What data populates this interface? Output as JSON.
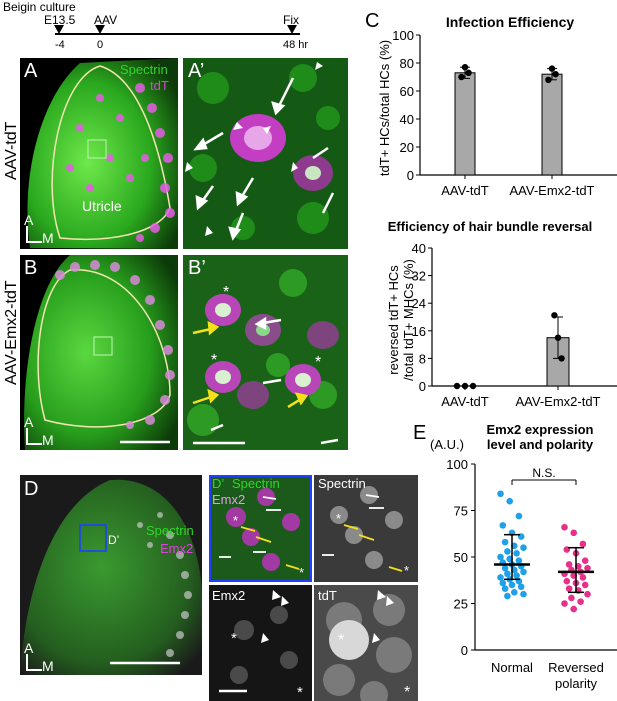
{
  "timeline": {
    "events": [
      {
        "label": "Beigin culture",
        "sub": "E13.5",
        "tick": "-4"
      },
      {
        "label": "AAV",
        "tick": "0"
      },
      {
        "label": "Fix",
        "tick": "48 hr"
      }
    ]
  },
  "panels": {
    "A": {
      "letter": "A",
      "row_label": "AAV-tdT",
      "legend1": "Spectrin",
      "legend2": "tdT",
      "region": "Utricle",
      "axis_a": "A",
      "axis_m": "M"
    },
    "A2": {
      "letter": "A’"
    },
    "B": {
      "letter": "B",
      "row_label": "AAV-Emx2-tdT",
      "axis_a": "A",
      "axis_m": "M"
    },
    "B2": {
      "letter": "B’"
    },
    "D": {
      "letter": "D",
      "legend1": "Spectrin",
      "legend2": "Emx2",
      "inset": "D’",
      "axis_a": "A",
      "axis_m": "M"
    },
    "D2": {
      "letter": "D’",
      "sub1": "Spectrin",
      "sub1b": "Emx2",
      "sub2": "Spectrin",
      "sub3": "Emx2",
      "sub4": "tdT"
    },
    "C": {
      "letter": "C"
    },
    "E": {
      "letter": "E"
    }
  },
  "colors": {
    "green": "#2fd62a",
    "magenta": "#e040e0",
    "blue": "#1fa0e8",
    "pink": "#e8308a",
    "bar": "#a8a8a8"
  },
  "chart_data": [
    {
      "type": "bar",
      "title": "Infection Efficiency",
      "ylabel": "tdT+ HCs/total HCs (%)",
      "categories": [
        "AAV-tdT",
        "AAV-Emx2-tdT"
      ],
      "values": [
        73,
        72
      ],
      "errors": [
        4,
        4
      ],
      "points": [
        [
          70,
          77,
          73
        ],
        [
          68,
          76,
          72
        ]
      ],
      "ylim": [
        0,
        100
      ],
      "yticks": [
        "0",
        "20",
        "40",
        "60",
        "80",
        "100"
      ]
    },
    {
      "type": "bar",
      "title": "Efficiency of hair bundle reversal",
      "ylabel_line1": "reversed tdT+ HCs",
      "ylabel_line2": "/total tdT+ MHCs (%)",
      "categories": [
        "AAV-tdT",
        "AAV-Emx2-tdT"
      ],
      "values": [
        0,
        14
      ],
      "errors": [
        0,
        6
      ],
      "points": [
        [
          0,
          0,
          0
        ],
        [
          20.5,
          14,
          8
        ]
      ],
      "ylim": [
        0,
        40
      ],
      "yticks": [
        "0",
        "8",
        "16",
        "24",
        "32",
        "40"
      ]
    },
    {
      "type": "scatter",
      "title_line1": "Emx2 expression",
      "title_line2": "level and polarity",
      "ylabel": "(A.U.)",
      "categories": [
        "Normal",
        "Reversed polarity"
      ],
      "category_lines": [
        [
          "Normal"
        ],
        [
          "Reversed",
          "polarity"
        ]
      ],
      "means": [
        46,
        42
      ],
      "sd": [
        [
          38,
          62
        ],
        [
          31,
          55
        ]
      ],
      "significance": "N.S.",
      "ylim": [
        0,
        100
      ],
      "yticks": [
        "0",
        "25",
        "50",
        "75",
        "100"
      ],
      "series": [
        {
          "name": "Normal",
          "values": [
            84,
            80,
            72,
            67,
            63,
            61,
            58,
            56,
            55,
            53,
            52,
            50,
            49,
            48,
            47,
            46,
            45,
            44,
            43,
            42,
            41,
            40,
            39,
            38,
            37,
            36,
            35,
            34,
            33,
            31,
            30,
            29
          ]
        },
        {
          "name": "Reversed polarity",
          "values": [
            66,
            63,
            57,
            54,
            52,
            48,
            46,
            45,
            44,
            43,
            42,
            41,
            40,
            39,
            37,
            36,
            35,
            33,
            32,
            30,
            28,
            26,
            25,
            22
          ]
        }
      ]
    }
  ]
}
